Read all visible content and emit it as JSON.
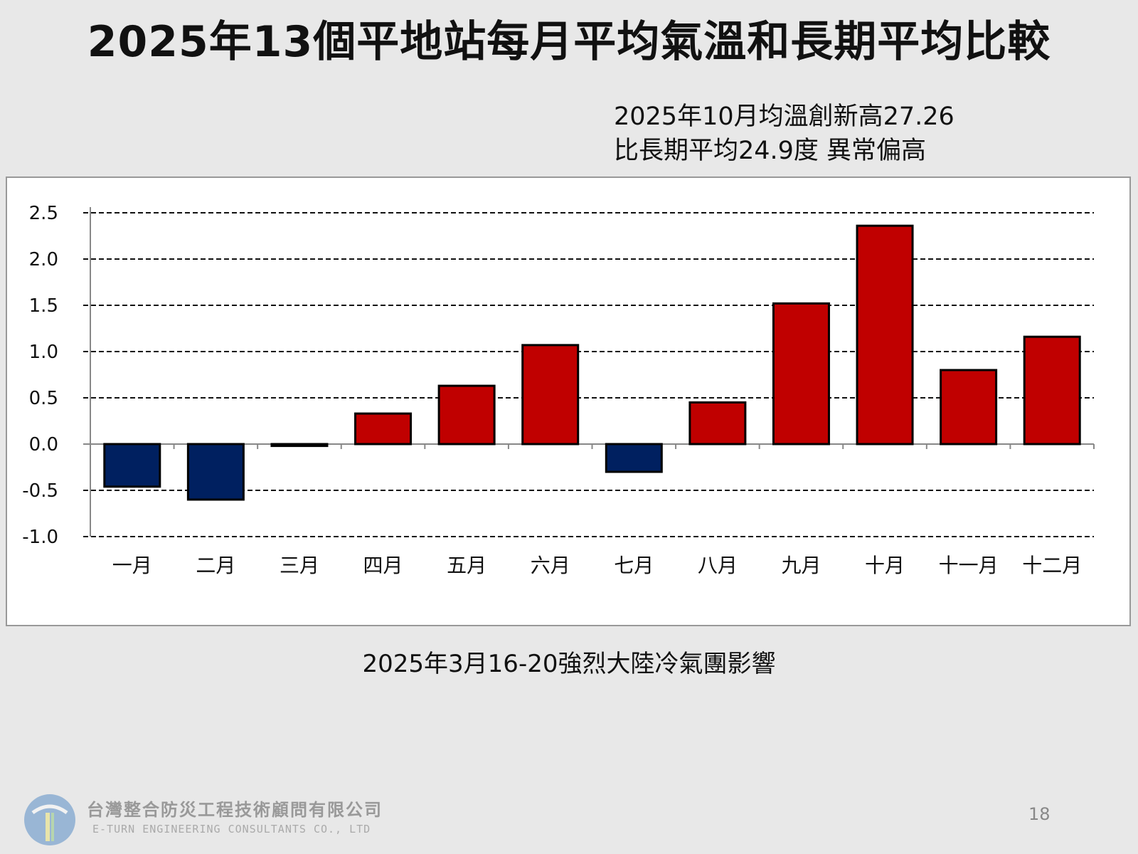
{
  "title": "2025年13個平地站每月平均氣溫和長期平均比較",
  "annotation": {
    "line1": "2025年10月均溫創新高27.26",
    "line2": "比長期平均24.9度 異常偏高"
  },
  "footnote": "2025年3月16-20強烈大陸冷氣團影響",
  "footer": {
    "company_zh": "台灣整合防災工程技術顧問有限公司",
    "company_en": "E-TURN ENGINEERING CONSULTANTS CO., LTD",
    "page_number": "18"
  },
  "colors": {
    "positive": "#c00000",
    "negative": "#002060",
    "background": "#e8e8e8"
  },
  "chart_data": {
    "type": "bar",
    "title": "",
    "xlabel": "",
    "ylabel": "",
    "categories": [
      "一月",
      "二月",
      "三月",
      "四月",
      "五月",
      "六月",
      "七月",
      "八月",
      "九月",
      "十月",
      "十一月",
      "十二月"
    ],
    "values": [
      -0.46,
      -0.6,
      -0.02,
      0.33,
      0.63,
      1.07,
      -0.3,
      0.45,
      1.52,
      2.36,
      0.8,
      1.16
    ],
    "ylim": [
      -1.0,
      2.5
    ],
    "yticks": [
      "2.5",
      "2.0",
      "1.5",
      "1.0",
      "0.5",
      "0.0",
      "-0.5",
      "-1.0"
    ],
    "grid": true,
    "legend": "none"
  }
}
